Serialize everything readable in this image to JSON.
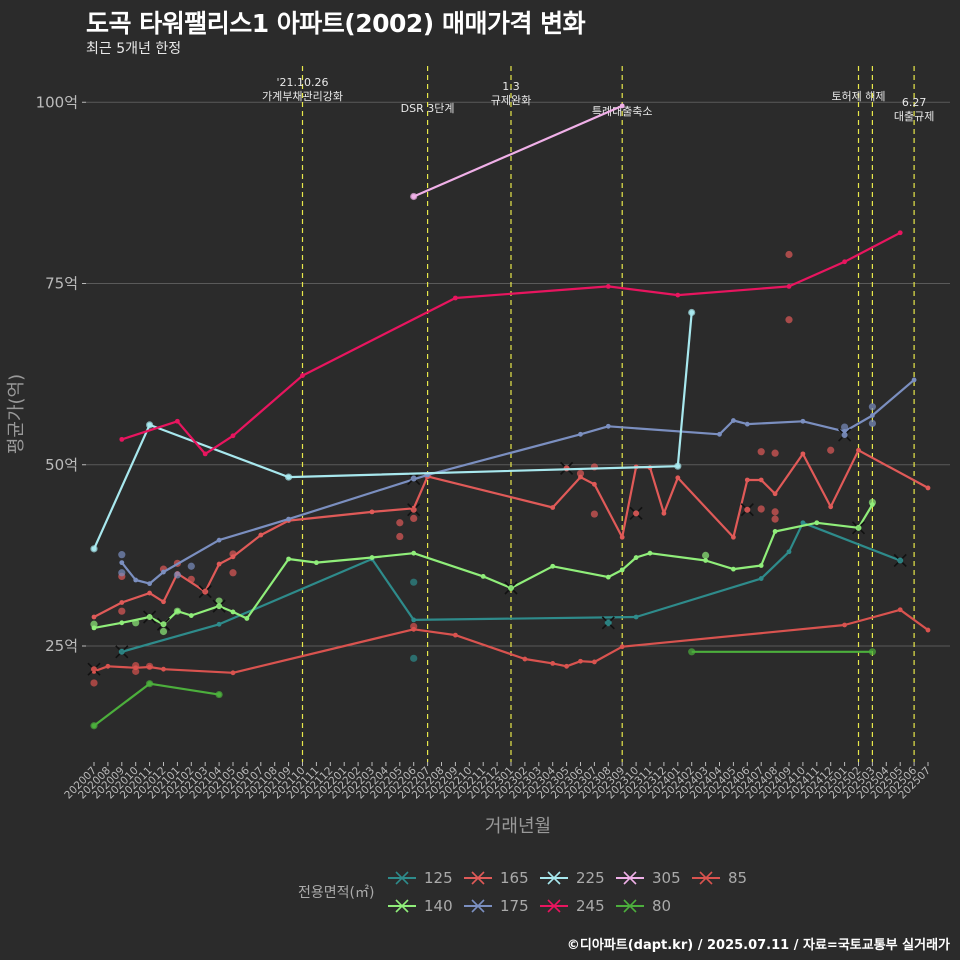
{
  "title": "도곡 타워팰리스1 아파트(2002) 매매가격 변화",
  "subtitle": "최근 5개년 한정",
  "caption": "©디아파트(dapt.kr) / 2025.07.11 / 자료=국토교통부 실거래가",
  "colors": {
    "background": "#2b2b2b",
    "grid": "#5a5a5a",
    "event_line": "#e8e84a",
    "axis_text": "#bbbbbb",
    "axis_title": "#999999",
    "series": {
      "125": "#2e8b8b",
      "140": "#90ee7a",
      "165": "#e05a58",
      "175": "#7b8fc0",
      "225": "#a8e8ee",
      "245": "#e8155f",
      "305": "#f0b0e8",
      "80": "#4caf3c",
      "85": "#d9534f"
    }
  },
  "chart_data": {
    "type": "line",
    "title": "도곡 타워팰리스1 아파트(2002) 매매가격 변화",
    "subtitle": "최근 5개년 한정",
    "xlabel": "거래년월",
    "ylabel": "평균가(억)",
    "x_ticks": [
      "202007",
      "202008",
      "202009",
      "202010",
      "202011",
      "202012",
      "202101",
      "202102",
      "202103",
      "202104",
      "202105",
      "202106",
      "202107",
      "202108",
      "202109",
      "202110",
      "202111",
      "202112",
      "202201",
      "202202",
      "202203",
      "202204",
      "202205",
      "202206",
      "202207",
      "202208",
      "202209",
      "202210",
      "202211",
      "202212",
      "202301",
      "202302",
      "202303",
      "202304",
      "202305",
      "202306",
      "202307",
      "202308",
      "202309",
      "202310",
      "202311",
      "202312",
      "202401",
      "202402",
      "202403",
      "202404",
      "202405",
      "202406",
      "202407",
      "202408",
      "202409",
      "202410",
      "202411",
      "202412",
      "202501",
      "202502",
      "202503",
      "202504",
      "202505",
      "202506",
      "202507"
    ],
    "y_ticks": [
      {
        "value": 25,
        "label": "25억"
      },
      {
        "value": 50,
        "label": "50억"
      },
      {
        "value": 75,
        "label": "75억"
      },
      {
        "value": 100,
        "label": "100억"
      }
    ],
    "ylim": [
      9,
      105
    ],
    "grid": true,
    "legend": {
      "title": "전용면적(㎡)",
      "position": "bottom",
      "items": [
        "125",
        "165",
        "225",
        "305",
        "85",
        "140",
        "175",
        "245",
        "80"
      ]
    },
    "events": [
      {
        "x": "202110",
        "label": "'21.10.26\n가계부채관리강화"
      },
      {
        "x": "202207",
        "label": "DSR 3단계"
      },
      {
        "x": "202301",
        "label": "1.3\n규제완화"
      },
      {
        "x": "202309",
        "label": "특례대출축소"
      },
      {
        "x": "202502",
        "label": "토허제 해제"
      },
      {
        "x": "202503",
        "label": ""
      },
      {
        "x": "202506",
        "label": "6.27\n대출규제"
      }
    ],
    "series": [
      {
        "name": "125",
        "line": [
          [
            "202009",
            24.2
          ],
          [
            "202104",
            28
          ],
          [
            "202203",
            37
          ],
          [
            "202206",
            28.6
          ],
          [
            "202310",
            29
          ],
          [
            "202407",
            34.3
          ],
          [
            "202409",
            38
          ],
          [
            "202410",
            42
          ],
          [
            "202505",
            36.8
          ]
        ],
        "points": [
          [
            "202206",
            33.8
          ],
          [
            "202206",
            23.3
          ],
          [
            "202308",
            28.2
          ]
        ],
        "marks": [
          [
            "202009",
            24.2
          ],
          [
            "202308",
            28.2
          ],
          [
            "202505",
            36.8
          ]
        ]
      },
      {
        "name": "140",
        "line": [
          [
            "202007",
            27.5
          ],
          [
            "202009",
            28.2
          ],
          [
            "202011",
            29
          ],
          [
            "202012",
            28
          ],
          [
            "202101",
            29.8
          ],
          [
            "202102",
            29.2
          ],
          [
            "202104",
            30.5
          ],
          [
            "202105",
            29.7
          ],
          [
            "202106",
            28.8
          ],
          [
            "202109",
            37
          ],
          [
            "202111",
            36.5
          ],
          [
            "202203",
            37.2
          ],
          [
            "202206",
            37.8
          ],
          [
            "202211",
            34.6
          ],
          [
            "202301",
            33
          ],
          [
            "202304",
            36
          ],
          [
            "202308",
            34.5
          ],
          [
            "202309",
            35.5
          ],
          [
            "202310",
            37.2
          ],
          [
            "202311",
            37.8
          ],
          [
            "202403",
            36.8
          ],
          [
            "202405",
            35.6
          ],
          [
            "202407",
            36.1
          ],
          [
            "202408",
            40.8
          ],
          [
            "202411",
            42
          ],
          [
            "202502",
            41.3
          ],
          [
            "202503",
            44.5
          ]
        ],
        "points": [
          [
            "202007",
            28
          ],
          [
            "202010",
            28.2
          ],
          [
            "202012",
            27
          ],
          [
            "202101",
            29.8
          ],
          [
            "202104",
            31.2
          ],
          [
            "202403",
            37.5
          ],
          [
            "202503",
            44.8
          ]
        ],
        "marks": [
          [
            "202011",
            29
          ],
          [
            "202012",
            28
          ],
          [
            "202104",
            30.5
          ],
          [
            "202301",
            33
          ],
          [
            "202502",
            41.3
          ]
        ]
      },
      {
        "name": "165",
        "line": [
          [
            "202007",
            29
          ],
          [
            "202009",
            31
          ],
          [
            "202011",
            32.3
          ],
          [
            "202012",
            31.1
          ],
          [
            "202101",
            35
          ],
          [
            "202103",
            32.5
          ],
          [
            "202104",
            36.3
          ],
          [
            "202105",
            37.3
          ],
          [
            "202107",
            40.3
          ],
          [
            "202109",
            42.3
          ],
          [
            "202203",
            43.5
          ],
          [
            "202206",
            44
          ],
          [
            "202207",
            48.4
          ],
          [
            "202304",
            44.1
          ],
          [
            "202306",
            48.3
          ],
          [
            "202307",
            47.3
          ],
          [
            "202309",
            40
          ],
          [
            "202310",
            49.7
          ],
          [
            "202311",
            49.6
          ],
          [
            "202312",
            43.3
          ],
          [
            "202401",
            48.2
          ],
          [
            "202405",
            40
          ],
          [
            "202406",
            47.9
          ],
          [
            "202407",
            47.9
          ],
          [
            "202408",
            46
          ],
          [
            "202410",
            51.5
          ],
          [
            "202412",
            44.2
          ],
          [
            "202502",
            52
          ],
          [
            "202507",
            46.8
          ]
        ],
        "points": [
          [
            "202009",
            34.6
          ],
          [
            "202009",
            29.8
          ],
          [
            "202012",
            35.6
          ],
          [
            "202101",
            36.4
          ],
          [
            "202102",
            34.2
          ],
          [
            "202105",
            35.1
          ],
          [
            "202105",
            37.7
          ],
          [
            "202205",
            40.1
          ],
          [
            "202205",
            42
          ],
          [
            "202206",
            42.6
          ],
          [
            "202207",
            48.5
          ],
          [
            "202306",
            48.8
          ],
          [
            "202307",
            43.2
          ],
          [
            "202307",
            49.7
          ],
          [
            "202407",
            51.8
          ],
          [
            "202407",
            43.9
          ],
          [
            "202408",
            51.6
          ],
          [
            "202408",
            43.5
          ],
          [
            "202408",
            42.5
          ],
          [
            "202409",
            79
          ],
          [
            "202409",
            70
          ],
          [
            "202412",
            52
          ]
        ],
        "marks": [
          [
            "202103",
            32.5
          ],
          [
            "202206",
            43.8
          ],
          [
            "202305",
            49.5
          ],
          [
            "202310",
            43.3
          ],
          [
            "202406",
            43.8
          ]
        ]
      },
      {
        "name": "175",
        "line": [
          [
            "202009",
            36.5
          ],
          [
            "202010",
            34.1
          ],
          [
            "202011",
            33.6
          ],
          [
            "202012",
            35.2
          ],
          [
            "202104",
            39.6
          ],
          [
            "202109",
            42.5
          ],
          [
            "202207",
            48.6
          ],
          [
            "202306",
            54.2
          ],
          [
            "202308",
            55.3
          ],
          [
            "202404",
            54.2
          ],
          [
            "202405",
            56.1
          ],
          [
            "202406",
            55.6
          ],
          [
            "202410",
            56
          ],
          [
            "202501",
            54.6
          ],
          [
            "202503",
            56.8
          ],
          [
            "202506",
            61.7
          ]
        ],
        "points": [
          [
            "202009",
            37.6
          ],
          [
            "202009",
            35.1
          ],
          [
            "202101",
            34.8
          ],
          [
            "202102",
            36
          ],
          [
            "202501",
            55.2
          ],
          [
            "202503",
            58
          ],
          [
            "202503",
            55.7
          ]
        ],
        "marks": [
          [
            "202206",
            48.1
          ],
          [
            "202501",
            54.1
          ]
        ]
      },
      {
        "name": "225",
        "line": [
          [
            "202007",
            38.4
          ],
          [
            "202011",
            55.5
          ],
          [
            "202109",
            48.3
          ],
          [
            "202401",
            49.8
          ],
          [
            "202402",
            71
          ]
        ],
        "points": [
          [
            "202007",
            38.4
          ],
          [
            "202011",
            55.5
          ],
          [
            "202109",
            48.3
          ],
          [
            "202401",
            49.8
          ],
          [
            "202402",
            71
          ]
        ],
        "marks": []
      },
      {
        "name": "245",
        "line": [
          [
            "202009",
            53.5
          ],
          [
            "202101",
            56
          ],
          [
            "202103",
            51.5
          ],
          [
            "202105",
            54
          ],
          [
            "202110",
            62.3
          ],
          [
            "202209",
            73
          ],
          [
            "202308",
            74.6
          ],
          [
            "202401",
            73.4
          ],
          [
            "202409",
            74.6
          ],
          [
            "202501",
            78
          ],
          [
            "202505",
            82
          ]
        ],
        "points": [],
        "marks": []
      },
      {
        "name": "305",
        "line": [
          [
            "202206",
            87
          ],
          [
            "202309",
            99.5
          ]
        ],
        "points": [
          [
            "202206",
            87
          ]
        ],
        "marks": []
      },
      {
        "name": "80",
        "line": [
          [
            "202007",
            14
          ],
          [
            "202011",
            19.8
          ],
          [
            "202104",
            18.3
          ]
        ],
        "line2": [
          [
            "202402",
            24.2
          ],
          [
            "202503",
            24.2
          ]
        ],
        "points": [
          [
            "202007",
            14
          ],
          [
            "202011",
            19.8
          ],
          [
            "202104",
            18.3
          ],
          [
            "202402",
            24.2
          ],
          [
            "202503",
            24.2
          ]
        ],
        "marks": []
      },
      {
        "name": "85",
        "line": [
          [
            "202007",
            21.5
          ],
          [
            "202008",
            22.2
          ],
          [
            "202010",
            22
          ],
          [
            "202011",
            22.1
          ],
          [
            "202012",
            21.8
          ],
          [
            "202105",
            21.3
          ],
          [
            "202206",
            27.3
          ],
          [
            "202209",
            26.5
          ],
          [
            "202302",
            23.2
          ],
          [
            "202304",
            22.6
          ],
          [
            "202305",
            22.2
          ],
          [
            "202306",
            22.9
          ],
          [
            "202307",
            22.8
          ],
          [
            "202309",
            24.9
          ],
          [
            "202501",
            27.9
          ],
          [
            "202505",
            30
          ],
          [
            "202507",
            27.2
          ]
        ],
        "points": [
          [
            "202007",
            19.9
          ],
          [
            "202010",
            22.3
          ],
          [
            "202010",
            21.5
          ],
          [
            "202011",
            22.2
          ],
          [
            "202206",
            27.7
          ]
        ],
        "marks": [
          [
            "202007",
            21.8
          ]
        ]
      }
    ]
  }
}
